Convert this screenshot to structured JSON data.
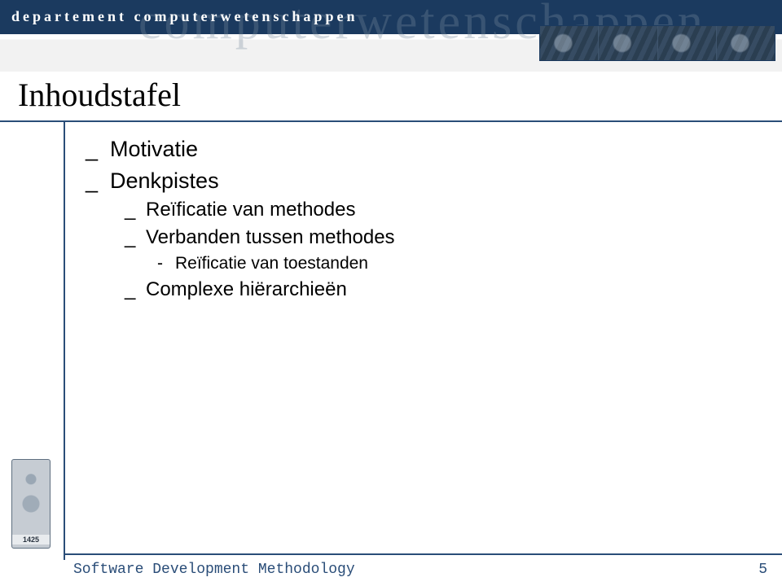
{
  "banner": {
    "front_text": "departement computerwetenschappen",
    "back_text": "computerwetenschappen",
    "colors": {
      "dark": "#1b3a5f",
      "rule": "#2a4d78"
    }
  },
  "title": "Inhoudstafel",
  "bullets": {
    "level1": [
      {
        "label": "Motivatie"
      },
      {
        "label": "Denkpistes",
        "children": [
          {
            "label": "Reïficatie van methodes"
          },
          {
            "label": "Verbanden tussen methodes",
            "children": [
              {
                "label": "Reïficatie van toestanden"
              }
            ]
          },
          {
            "label": "Complexe hiërarchieën"
          }
        ]
      }
    ]
  },
  "seal": {
    "year": "1425"
  },
  "footer": {
    "text": "Software Development Methodology",
    "page": "5"
  }
}
